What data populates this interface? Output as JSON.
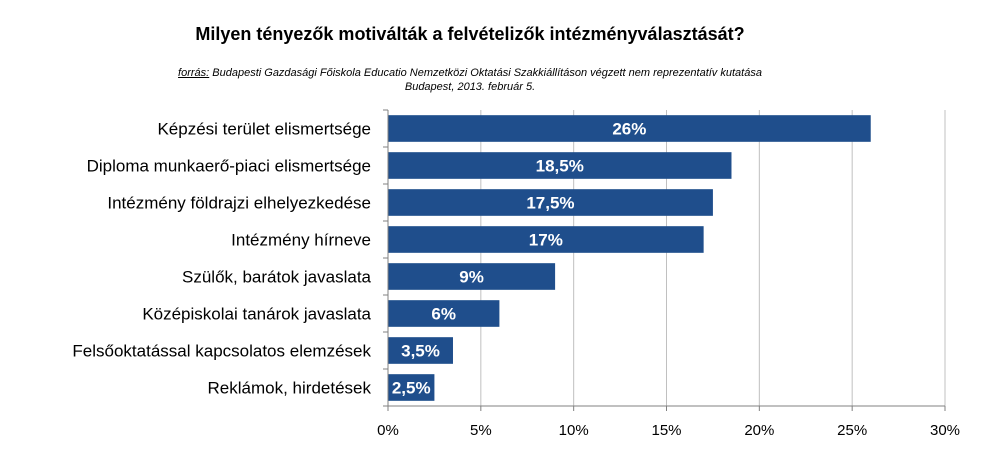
{
  "title": "Milyen tényezők motiválták a felvételizők intézményválasztását?",
  "source": {
    "label": "forrás:",
    "text": " Budapesti Gazdasági Főiskola Educatio Nemzetközi Oktatási Szakkiállításon végzett nem reprezentatív kutatása",
    "line2": "Budapest, 2013. február 5."
  },
  "colors": {
    "bar": "#1f4e8c",
    "grid": "#c0c0c0",
    "axis": "#808080",
    "bar_label": "#ffffff"
  },
  "chart_data": {
    "type": "bar",
    "orientation": "horizontal",
    "title": "Milyen tényezők motiválták a felvételizők intézményválasztását?",
    "categories": [
      "Képzési terület elismertsége",
      "Diploma munkaerő-piaci elismertsége",
      "Intézmény földrajzi elhelyezkedése",
      "Intézmény hírneve",
      "Szülők, barátok javaslata",
      "Középiskolai tanárok javaslata",
      "Felsőoktatással kapcsolatos elemzések",
      "Reklámok, hirdetések"
    ],
    "values": [
      26,
      18.5,
      17.5,
      17,
      9,
      6,
      3.5,
      2.5
    ],
    "data_labels": [
      "26%",
      "18,5%",
      "17,5%",
      "17%",
      "9%",
      "6%",
      "3,5%",
      "2,5%"
    ],
    "xlim": [
      0,
      30
    ],
    "ticks": [
      0,
      5,
      10,
      15,
      20,
      25,
      30
    ],
    "tick_labels": [
      "0%",
      "5%",
      "10%",
      "15%",
      "20%",
      "25%",
      "30%"
    ],
    "grid": true,
    "legend": false
  }
}
